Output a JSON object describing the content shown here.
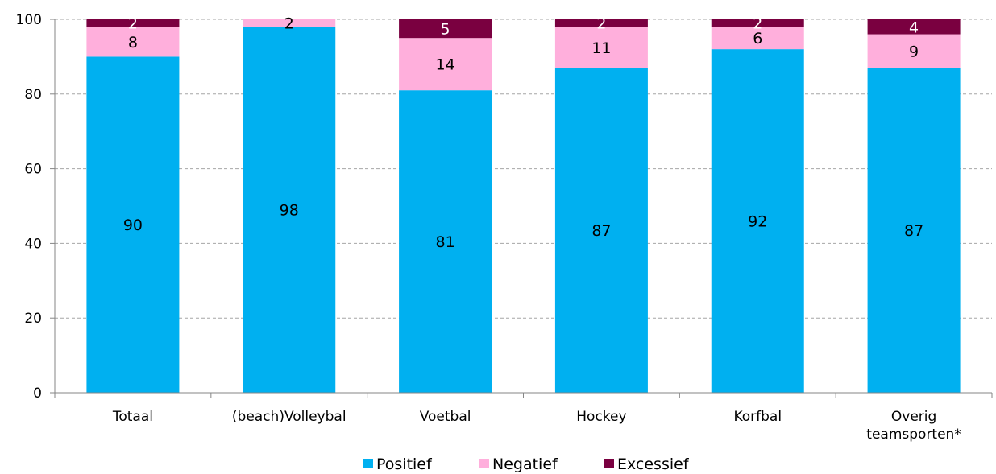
{
  "chart_data": {
    "type": "bar",
    "stacked": true,
    "categories": [
      "Totaal",
      "(beach)Volleybal",
      "Voetbal",
      "Hockey",
      "Korfbal",
      "Overig teamsporten*"
    ],
    "category_lines": [
      [
        "Totaal"
      ],
      [
        "(beach)Volleybal"
      ],
      [
        "Voetbal"
      ],
      [
        "Hockey"
      ],
      [
        "Korfbal"
      ],
      [
        "Overig",
        "teamsporten*"
      ]
    ],
    "series": [
      {
        "name": "Positief",
        "color": "#00B0F0",
        "label_color": "#000000",
        "values": [
          90,
          98,
          81,
          87,
          92,
          87
        ]
      },
      {
        "name": "Negatief",
        "color": "#FFAFDC",
        "label_color": "#000000",
        "values": [
          8,
          2,
          14,
          11,
          6,
          9
        ]
      },
      {
        "name": "Excessief",
        "color": "#7A0040",
        "label_color": "#ffffff",
        "values": [
          2,
          0,
          5,
          2,
          2,
          4
        ]
      }
    ],
    "data_labels": [
      [
        "90",
        "98",
        "81",
        "87",
        "92",
        "87"
      ],
      [
        "8",
        "2",
        "14",
        "11",
        "6",
        "9"
      ],
      [
        "2",
        "",
        "5",
        "2",
        "2",
        "4"
      ]
    ],
    "ylim": [
      0,
      100
    ],
    "yticks": [
      "0",
      "20",
      "40",
      "60",
      "80",
      "100"
    ],
    "grid": true,
    "legend_position": "bottom"
  }
}
